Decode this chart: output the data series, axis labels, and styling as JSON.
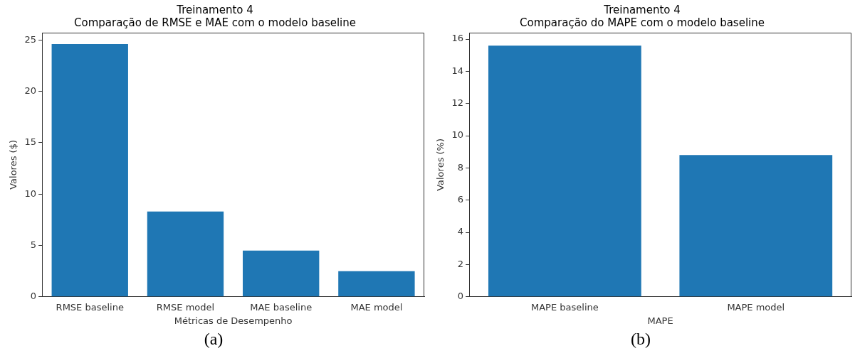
{
  "chart_data": [
    {
      "type": "bar",
      "title": "Treinamento 4\nComparação de RMSE e MAE com o modelo baseline",
      "xlabel": "Métricas de Desempenho",
      "ylabel": "Valores ($)",
      "categories": [
        "RMSE baseline",
        "RMSE model",
        "MAE baseline",
        "MAE model"
      ],
      "values": [
        24.6,
        8.3,
        4.5,
        2.5
      ],
      "color": "#1f77b4",
      "ylim": [
        0,
        25.7
      ],
      "yticks": [
        0,
        5,
        10,
        15,
        20,
        25
      ],
      "grid": false,
      "annotations": [
        "(a)"
      ]
    },
    {
      "type": "bar",
      "title": "Treinamento 4\nComparação do MAPE com o modelo baseline",
      "xlabel": "MAPE",
      "ylabel": "Valores (%)",
      "categories": [
        "MAPE baseline",
        "MAPE model"
      ],
      "values": [
        15.6,
        8.8
      ],
      "color": "#1f77b4",
      "ylim": [
        0,
        16.4
      ],
      "yticks": [
        0,
        2,
        4,
        6,
        8,
        10,
        12,
        14,
        16
      ],
      "grid": false,
      "annotations": [
        "(b)"
      ]
    }
  ]
}
